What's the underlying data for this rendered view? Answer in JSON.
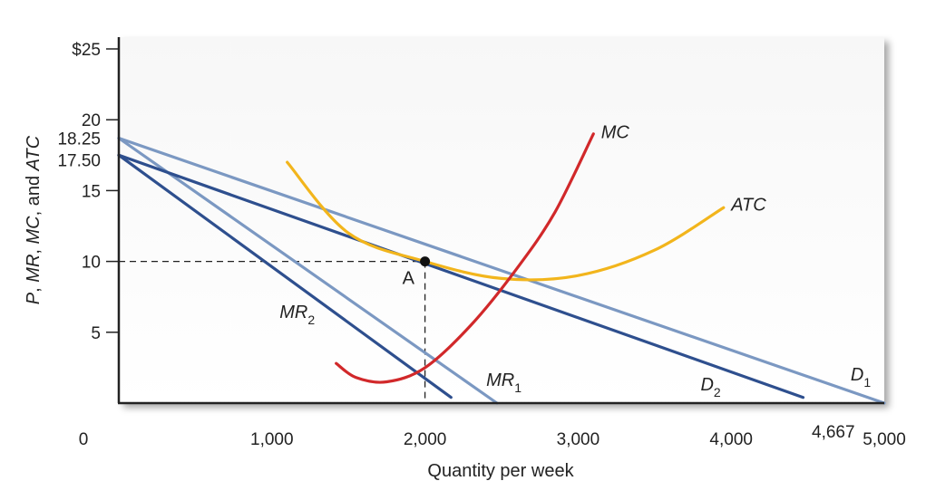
{
  "chart_data": {
    "type": "line",
    "xlabel": "Quantity per week",
    "ylabel_parts": [
      "P",
      ", ",
      "MR",
      ", ",
      "MC",
      ", and ",
      "ATC"
    ],
    "xlim": [
      0,
      5000
    ],
    "ylim": [
      0,
      25
    ],
    "origin_label": "0",
    "x_ticks": [
      {
        "value": 1000,
        "label": "1,000"
      },
      {
        "value": 2000,
        "label": "2,000"
      },
      {
        "value": 3000,
        "label": "3,000"
      },
      {
        "value": 4000,
        "label": "4,000"
      },
      {
        "value": 4667,
        "label": "4,667"
      },
      {
        "value": 5000,
        "label": "5,000"
      }
    ],
    "y_ticks": [
      {
        "value": 25,
        "label": "$25"
      },
      {
        "value": 20,
        "label": "20"
      },
      {
        "value": 18.25,
        "label": "18.25"
      },
      {
        "value": 17.5,
        "label": "17.50"
      },
      {
        "value": 15,
        "label": "15"
      },
      {
        "value": 10,
        "label": "10"
      },
      {
        "value": 5,
        "label": "5"
      }
    ],
    "series": [
      {
        "key": "D1",
        "label": "D",
        "subscript": "1",
        "color": "#7b98c2",
        "points": [
          [
            0,
            18.7
          ],
          [
            5000,
            0
          ]
        ],
        "label_at": [
          4780,
          1.6
        ]
      },
      {
        "key": "D2",
        "label": "D",
        "subscript": "2",
        "color": "#2e4f8e",
        "points": [
          [
            0,
            17.5
          ],
          [
            4470,
            0.4
          ]
        ],
        "label_at": [
          3800,
          0.9
        ]
      },
      {
        "key": "MR1",
        "label": "MR",
        "subscript": "1",
        "color": "#7b98c2",
        "points": [
          [
            0,
            18.7
          ],
          [
            2470,
            0
          ]
        ],
        "label_at": [
          2400,
          1.2
        ]
      },
      {
        "key": "MR2",
        "label": "MR",
        "subscript": "2",
        "color": "#2e4f8e",
        "points": [
          [
            0,
            17.5
          ],
          [
            2170,
            0.4
          ]
        ],
        "label_at": [
          1050,
          6.0
        ]
      },
      {
        "key": "MC",
        "label": "MC",
        "subscript": "",
        "color": "#d1282a",
        "points": [
          [
            1420,
            2.8
          ],
          [
            1550,
            1.8
          ],
          [
            1750,
            1.5
          ],
          [
            2000,
            2.5
          ],
          [
            2300,
            5.5
          ],
          [
            2600,
            9.5
          ],
          [
            2850,
            13.5
          ],
          [
            3100,
            19
          ]
        ],
        "label_at": [
          3150,
          18.7
        ]
      },
      {
        "key": "ATC",
        "label": "ATC",
        "subscript": "",
        "color": "#f2b51c",
        "points": [
          [
            1100,
            17
          ],
          [
            1500,
            12
          ],
          [
            2000,
            10
          ],
          [
            2500,
            8.8
          ],
          [
            3000,
            9
          ],
          [
            3500,
            10.8
          ],
          [
            3950,
            13.8
          ]
        ],
        "label_at": [
          4000,
          13.6
        ]
      }
    ],
    "point_A": {
      "label": "A",
      "x": 2000,
      "y": 10
    },
    "grid": false,
    "legend": "none"
  }
}
